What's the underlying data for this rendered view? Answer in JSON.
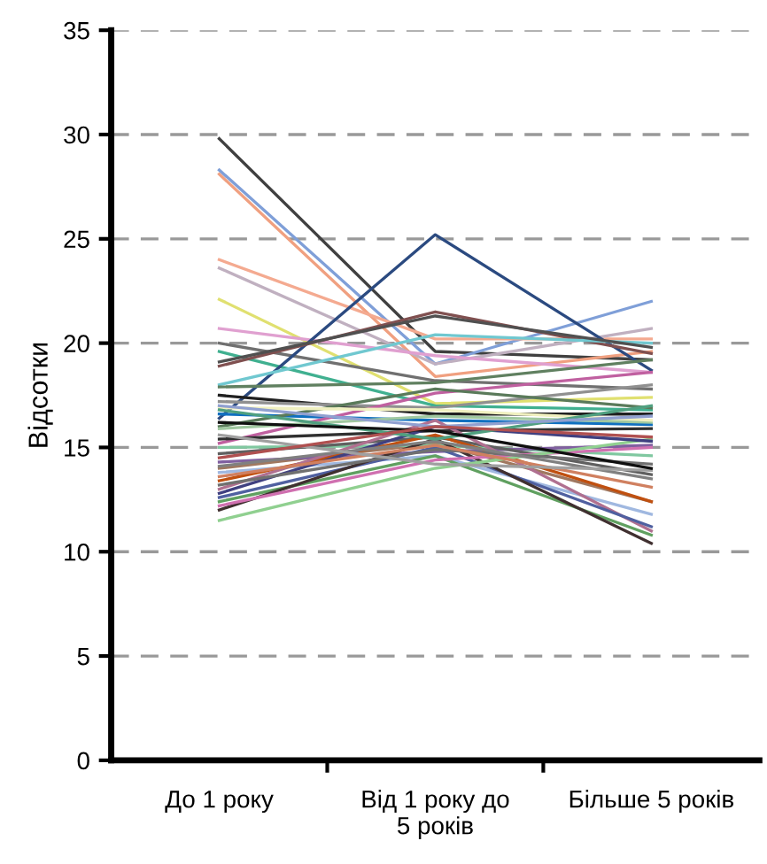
{
  "chart_data": {
    "type": "line",
    "ylabel": "Відсотки",
    "categories": [
      "До 1 року",
      "Від 1 року до 5 років",
      "Більше 5 років"
    ],
    "ylim": [
      0,
      35
    ],
    "yticks": [
      0,
      5,
      10,
      15,
      20,
      25,
      30,
      35
    ],
    "grid": "y",
    "legend": false,
    "marker": "none",
    "line_style": "solid",
    "series": [
      {
        "color": "#404040",
        "values": [
          29.8,
          19.6,
          19.2
        ]
      },
      {
        "color": "#7f9fd8",
        "values": [
          28.3,
          19.0,
          22.0
        ]
      },
      {
        "color": "#f0a080",
        "values": [
          28.1,
          18.4,
          19.6
        ]
      },
      {
        "color": "#f4aa90",
        "values": [
          24.0,
          20.2,
          20.2
        ]
      },
      {
        "color": "#c0b0c0",
        "values": [
          23.6,
          19.0,
          20.7
        ]
      },
      {
        "color": "#e0e070",
        "values": [
          22.1,
          17.1,
          17.4
        ]
      },
      {
        "color": "#e0a0d0",
        "values": [
          20.7,
          19.4,
          18.6
        ]
      },
      {
        "color": "#707070",
        "values": [
          20.0,
          18.2,
          17.8
        ]
      },
      {
        "color": "#40b090",
        "values": [
          19.6,
          17.0,
          16.8
        ]
      },
      {
        "color": "#2b4a80",
        "values": [
          16.4,
          25.2,
          18.7
        ]
      },
      {
        "color": "#805050",
        "values": [
          18.9,
          21.5,
          19.5
        ]
      },
      {
        "color": "#70c8d0",
        "values": [
          18.0,
          20.4,
          20.0
        ]
      },
      {
        "color": "#505050",
        "values": [
          19.1,
          21.3,
          19.8
        ]
      },
      {
        "color": "#608060",
        "values": [
          17.9,
          18.1,
          19.2
        ]
      },
      {
        "color": "#202020",
        "values": [
          17.5,
          16.6,
          16.6
        ]
      },
      {
        "color": "#1070c0",
        "values": [
          16.6,
          16.3,
          16.1
        ]
      },
      {
        "color": "#909090",
        "values": [
          17.2,
          16.9,
          18.0
        ]
      },
      {
        "color": "#c060a0",
        "values": [
          15.2,
          17.6,
          18.6
        ]
      },
      {
        "color": "#5a7a5a",
        "values": [
          16.0,
          17.8,
          16.9
        ]
      },
      {
        "color": "#a0c8a0",
        "values": [
          15.9,
          16.5,
          16.2
        ]
      },
      {
        "color": "#303030",
        "values": [
          15.4,
          15.8,
          15.9
        ]
      },
      {
        "color": "#a07860",
        "values": [
          14.0,
          15.2,
          12.4
        ]
      },
      {
        "color": "#80c8a0",
        "values": [
          15.0,
          15.1,
          14.6
        ]
      },
      {
        "color": "#8060a0",
        "values": [
          14.3,
          14.8,
          15.1
        ]
      },
      {
        "color": "#606060",
        "values": [
          14.7,
          15.5,
          13.7
        ]
      },
      {
        "color": "#c05010",
        "values": [
          13.4,
          15.6,
          12.4
        ]
      },
      {
        "color": "#a0b8e0",
        "values": [
          13.8,
          14.6,
          11.8
        ]
      },
      {
        "color": "#b07090",
        "values": [
          13.0,
          16.3,
          11.0
        ]
      },
      {
        "color": "#60a060",
        "values": [
          12.4,
          14.6,
          10.8
        ]
      },
      {
        "color": "#5060a0",
        "values": [
          12.6,
          15.0,
          11.2
        ]
      },
      {
        "color": "#403030",
        "values": [
          12.0,
          15.4,
          10.4
        ]
      },
      {
        "color": "#d070b0",
        "values": [
          12.2,
          14.4,
          15.0
        ]
      },
      {
        "color": "#90d090",
        "values": [
          11.5,
          14.0,
          15.4
        ]
      },
      {
        "color": "#f0f0c0",
        "values": [
          16.9,
          16.8,
          16.3
        ]
      },
      {
        "color": "#404080",
        "values": [
          12.8,
          16.0,
          15.3
        ]
      },
      {
        "color": "#707070",
        "values": [
          13.2,
          14.9,
          14.2
        ]
      },
      {
        "color": "#808080",
        "values": [
          14.1,
          15.3,
          13.5
        ]
      },
      {
        "color": "#d08060",
        "values": [
          13.6,
          15.1,
          13.1
        ]
      },
      {
        "color": "#50a080",
        "values": [
          16.8,
          15.4,
          17.0
        ]
      },
      {
        "color": "#a0a0a0",
        "values": [
          15.6,
          14.2,
          13.9
        ]
      },
      {
        "color": "#101010",
        "values": [
          16.2,
          15.8,
          14.0
        ]
      },
      {
        "color": "#90a0d0",
        "values": [
          17.0,
          16.0,
          16.5
        ]
      },
      {
        "color": "#b05050",
        "values": [
          14.5,
          16.0,
          15.5
        ]
      }
    ]
  }
}
